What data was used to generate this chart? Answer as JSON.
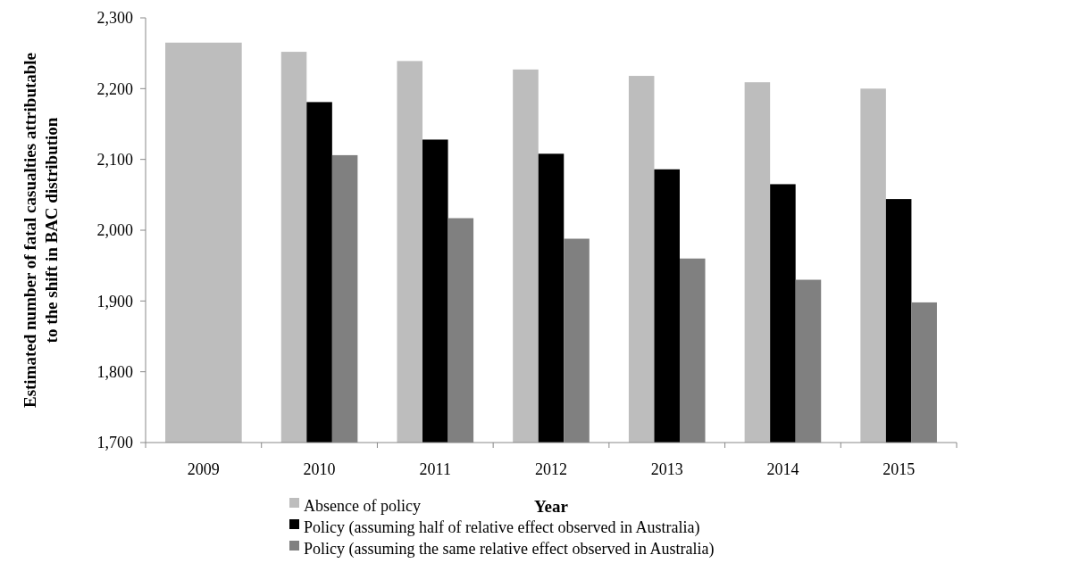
{
  "chart_data": {
    "type": "bar",
    "xlabel": "Year",
    "ylabel": "Estimated number of fatal casualties attributable to the shift in BAC distribution",
    "categories": [
      "2009",
      "2010",
      "2011",
      "2012",
      "2013",
      "2014",
      "2015"
    ],
    "series": [
      {
        "name": "Absence of policy",
        "color": "#bdbdbd",
        "values": [
          2265,
          2252,
          2239,
          2227,
          2218,
          2209,
          2200
        ]
      },
      {
        "name": "Policy (assuming half of relative effect observed in Australia)",
        "color": "#000000",
        "values": [
          null,
          2181,
          2128,
          2108,
          2086,
          2065,
          2044
        ]
      },
      {
        "name": "Policy (assuming the same relative effect observed in Australia)",
        "color": "#808080",
        "values": [
          null,
          2106,
          2017,
          1988,
          1960,
          1930,
          1898
        ]
      }
    ],
    "ylim": [
      1700,
      2300
    ],
    "yticks": [
      {
        "value": 1700,
        "label": "1,700"
      },
      {
        "value": 1800,
        "label": "1,800"
      },
      {
        "value": 1900,
        "label": "1,900"
      },
      {
        "value": 2000,
        "label": "2,000"
      },
      {
        "value": 2100,
        "label": "2,100"
      },
      {
        "value": 2200,
        "label": "2,200"
      },
      {
        "value": 2300,
        "label": "2,300"
      }
    ],
    "legend": "bottom",
    "grid": false
  }
}
